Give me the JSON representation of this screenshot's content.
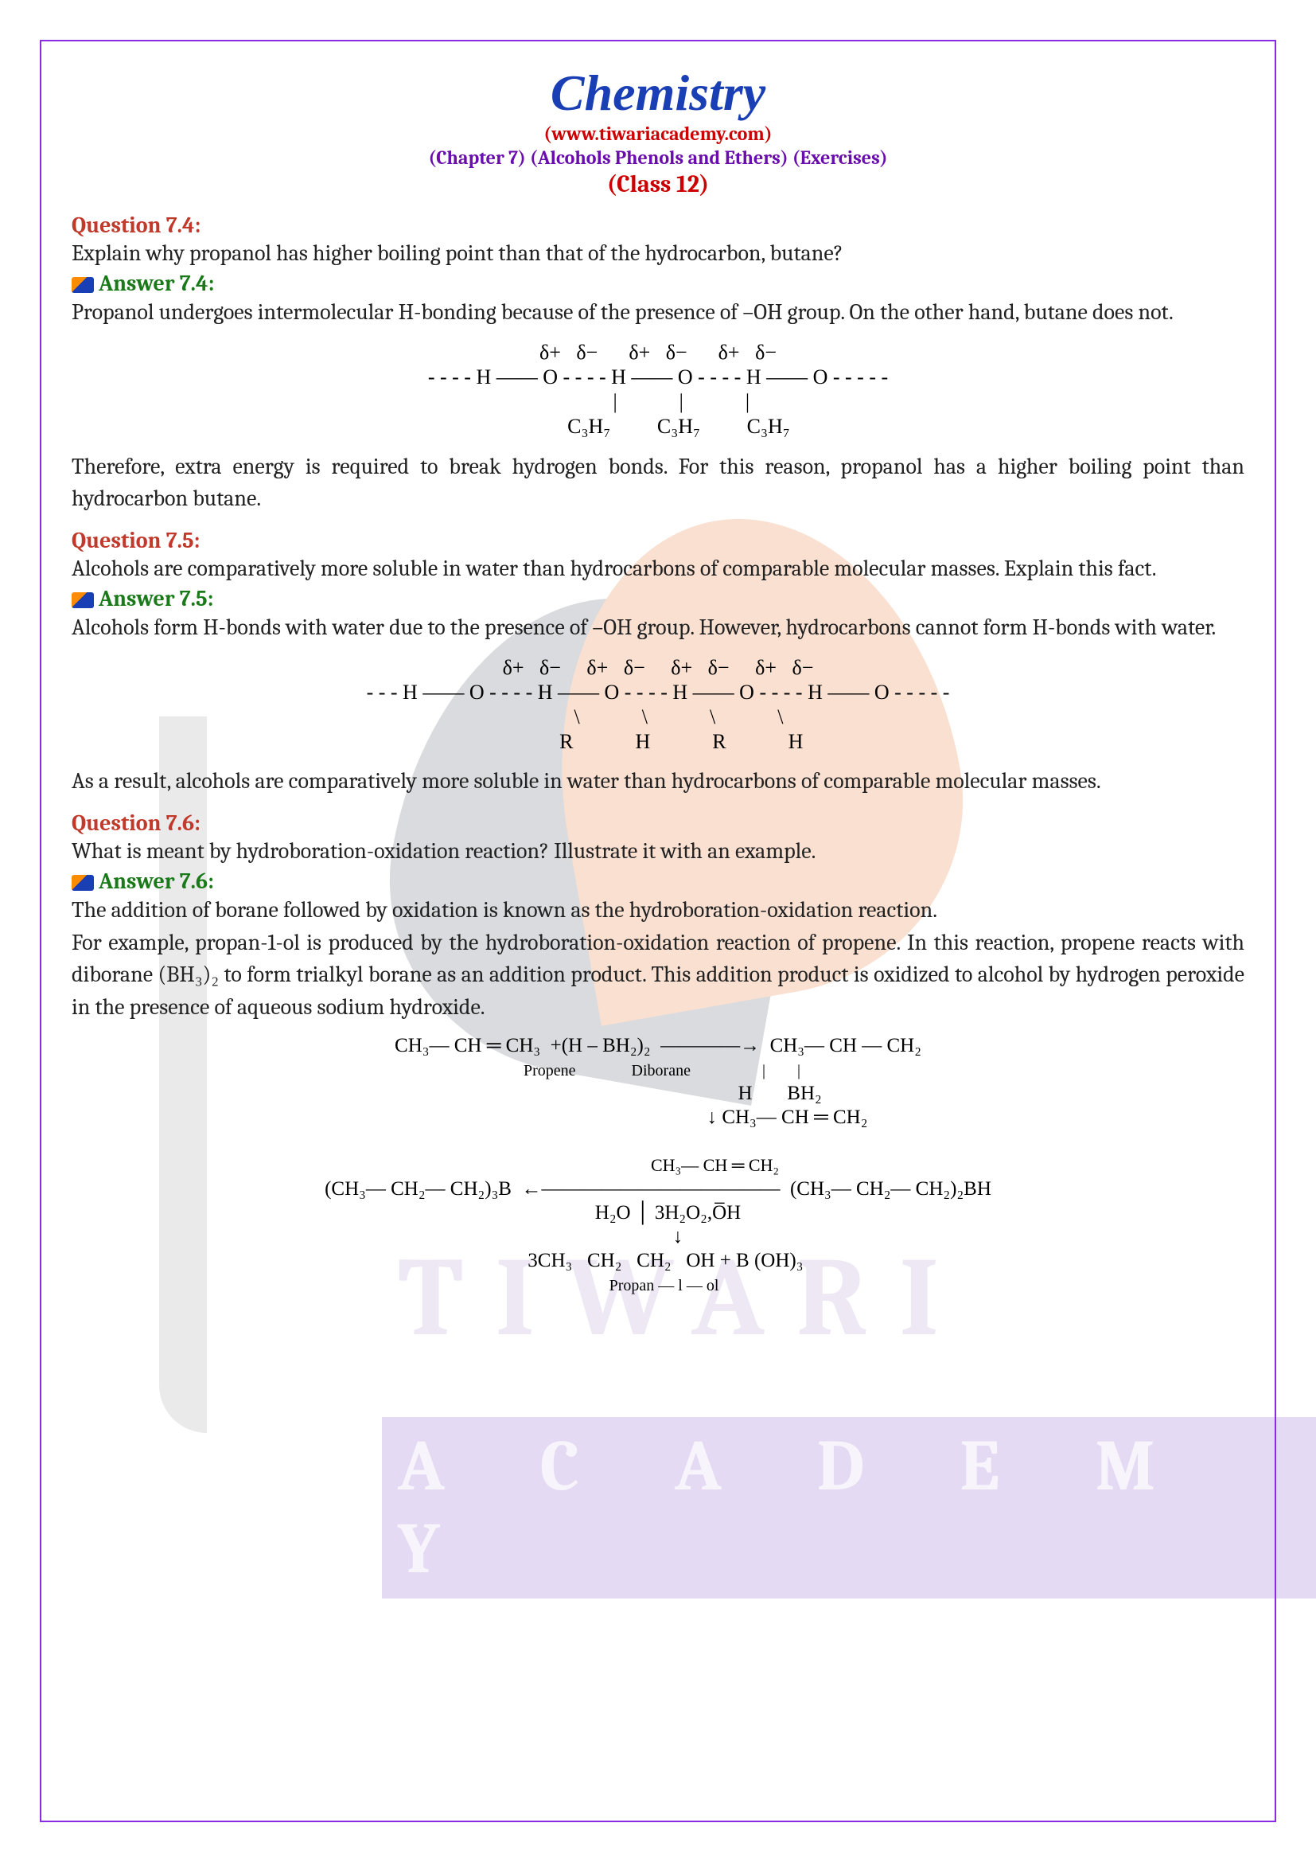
{
  "header": {
    "title": "Chemistry",
    "site": "(www.tiwariacademy.com)",
    "chapter": "(Chapter 7) (Alcohols Phenols and Ethers) (Exercises)",
    "class": "(Class 12)"
  },
  "q74": {
    "label": "Question 7.4:",
    "text": "Explain why propanol has higher boiling point than that of the hydrocarbon, butane?",
    "answer_label": "Answer 7.4:",
    "answer_p1": "Propanol undergoes intermolecular H-bonding because of the presence of –OH group. On the other hand, butane does not.",
    "diagram_l1": "δ+   δ−      δ+   δ−      δ+   δ−",
    "diagram_l2": "- - - - H —— O - - - - H —— O - - - - H —— O - - - - -",
    "diagram_l3": "         |            |            |",
    "diagram_l4": "        C₃H₇         C₃H₇         C₃H₇",
    "answer_p2": "Therefore, extra energy is required to break hydrogen bonds. For this reason, propanol has a higher boiling point than hydrocarbon butane."
  },
  "q75": {
    "label": "Question 7.5:",
    "text": "Alcohols are comparatively more soluble in water than hydrocarbons of comparable molecular masses. Explain this fact.",
    "answer_label": "Answer 7.5:",
    "answer_p1": "Alcohols form H-bonds with water due to the presence of –OH group. However, hydrocarbons cannot form H-bonds with water.",
    "diagram_l1": "δ+   δ−     δ+   δ−     δ+   δ−     δ+   δ−",
    "diagram_l2": "- - - H —— O - - - - H —— O - - - - H —— O - - - - H —— O - - - - -",
    "diagram_l3": "        \\            \\            \\            \\",
    "diagram_l4": "         R            H            R            H",
    "answer_p2": "As a result, alcohols are comparatively more soluble in water than hydrocarbons of comparable molecular masses."
  },
  "q76": {
    "label": "Question 7.6:",
    "text": "What is meant by hydroboration-oxidation reaction? Illustrate it with an example.",
    "answer_label": "Answer 7.6:",
    "answer_p1": "The addition of borane followed by oxidation is known as the hydroboration-oxidation reaction.",
    "answer_p2": "For example, propan-1-ol is produced by the hydroboration-oxidation reaction of propene. In this reaction, propene reacts with diborane (BH₃)₂ to form trialkyl borane as an addition product. This addition product is oxidized to alcohol by hydrogen peroxide in the presence of aqueous sodium hydroxide.",
    "diagram_l1": "CH₃— CH ═ CH₃  +(H – BH₂)₂  ————→  CH₃— CH — CH₂",
    "diagram_l2": "  Propene              Diborane                  |        |",
    "diagram_l3": "                                                 H       BH₂",
    "diagram_l4": "                                                    ↓ CH₃— CH ═ CH₂",
    "diagram_l5": "                          CH₃— CH ═ CH₂",
    "diagram_l6": "(CH₃— CH₂— CH₂)₃B  ←————————————  (CH₃— CH₂— CH₂)₂BH",
    "diagram_l7": "    H₂O │ 3H₂O₂,O̅H",
    "diagram_l8": "        ↓",
    "diagram_l9": "   3CH₃   CH₂   CH₂   OH + B (OH)₃",
    "diagram_l10": "   Propan — l — ol"
  },
  "colors": {
    "border": "#8a2be2",
    "title": "#1a3fb5",
    "red": "#c00",
    "purple": "#6a0dad",
    "question": "#c0392b",
    "answer": "#1a7a1a",
    "body": "#222222"
  }
}
